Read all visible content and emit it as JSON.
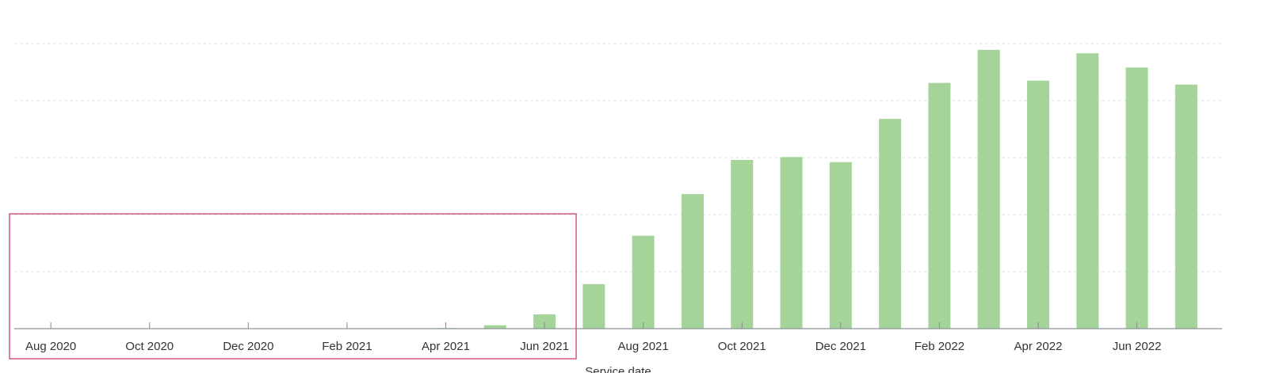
{
  "chart_data": {
    "type": "bar",
    "xlabel": "Service date",
    "categories": [
      "Aug 2020",
      null,
      "Oct 2020",
      null,
      "Dec 2020",
      null,
      "Feb 2021",
      null,
      "Apr 2021",
      null,
      "Jun 2021",
      null,
      "Aug 2021",
      null,
      "Oct 2021",
      null,
      "Dec 2021",
      null,
      "Feb 2022",
      null,
      "Apr 2022",
      null,
      "Jun 2022",
      null
    ],
    "values": [
      0,
      0,
      0,
      0,
      0,
      0,
      0,
      0,
      0.01,
      0.06,
      0.25,
      0.78,
      1.63,
      2.36,
      2.96,
      3.01,
      2.92,
      3.68,
      4.31,
      4.89,
      4.35,
      4.83,
      4.58,
      4.28
    ],
    "color": "#a5d49a",
    "ylim": [
      0,
      5
    ],
    "yticks": [
      0,
      1,
      2,
      3,
      4,
      5
    ],
    "show_ytick_labels": false,
    "grid": true
  }
}
